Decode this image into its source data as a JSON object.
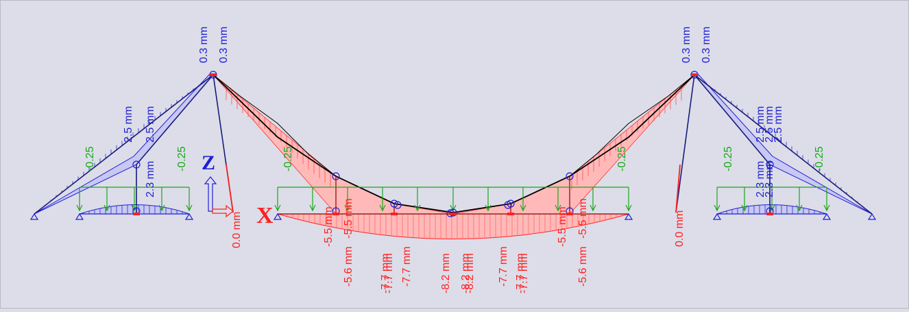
{
  "colors": {
    "background": "#dcdde8",
    "positive": "#1f1fd6",
    "negative": "#ff2020",
    "load": "#17a817",
    "outline": "#000000",
    "hatch_blue": "#3535c8",
    "hatch_red": "#ff5a5a",
    "fill_red": "#ffb9b9",
    "fill_blue": "#c8c8f2"
  },
  "axes": {
    "z_label": "Z",
    "x_label": "X"
  },
  "load_values": [
    {
      "id": "load-left-outer",
      "text": "-0.25"
    },
    {
      "id": "load-left-inner",
      "text": "-0.25"
    },
    {
      "id": "load-main-left",
      "text": "-0.25"
    },
    {
      "id": "load-main-right",
      "text": "-0.25"
    },
    {
      "id": "load-right-inner",
      "text": "-0.25"
    },
    {
      "id": "load-right-outer",
      "text": "-0.25"
    }
  ],
  "pylon_labels": [
    {
      "id": "left-top-a",
      "text": "0.3 mm",
      "color": "positive"
    },
    {
      "id": "left-top-b",
      "text": "0.3 mm",
      "color": "positive"
    },
    {
      "id": "right-top-a",
      "text": "0.3 mm",
      "color": "positive"
    },
    {
      "id": "right-top-b",
      "text": "0.3 mm",
      "color": "positive"
    },
    {
      "id": "left-base",
      "text": "0.0 mm",
      "color": "negative"
    },
    {
      "id": "right-base",
      "text": "0.0 mm",
      "color": "negative"
    }
  ],
  "side_span_labels": [
    {
      "id": "ls-1",
      "text": "2.5 mm"
    },
    {
      "id": "ls-2",
      "text": "2.5 mm"
    },
    {
      "id": "ls-3",
      "text": "2.3 mm"
    },
    {
      "id": "rs-1",
      "text": "2.5 mm"
    },
    {
      "id": "rs-2",
      "text": "2.5 mm"
    },
    {
      "id": "rs-3",
      "text": "2.5 mm"
    },
    {
      "id": "rs-4",
      "text": "2.3 mm"
    },
    {
      "id": "rs-5",
      "text": "2.3 mm"
    }
  ],
  "main_span_labels": [
    {
      "id": "m-1",
      "text": "-5.5 mm"
    },
    {
      "id": "m-2",
      "text": "-5.5 mm"
    },
    {
      "id": "m-3",
      "text": "-5.6 mm"
    },
    {
      "id": "m-4",
      "text": "-7.7 mm"
    },
    {
      "id": "m-5",
      "text": "-7.7 mm"
    },
    {
      "id": "m-6",
      "text": "-7.7 mm"
    },
    {
      "id": "m-7",
      "text": "-8.2 mm"
    },
    {
      "id": "m-8",
      "text": "-8.2 mm"
    },
    {
      "id": "m-9",
      "text": "-8.2 mm"
    },
    {
      "id": "m-10",
      "text": "-7.7 mm"
    },
    {
      "id": "m-11",
      "text": "-7.7 mm"
    },
    {
      "id": "m-12",
      "text": "-7.7 mm"
    },
    {
      "id": "m-13",
      "text": "-5.5 mm"
    },
    {
      "id": "m-14",
      "text": "-5.5 mm"
    },
    {
      "id": "m-15",
      "text": "-5.6 mm"
    }
  ]
}
